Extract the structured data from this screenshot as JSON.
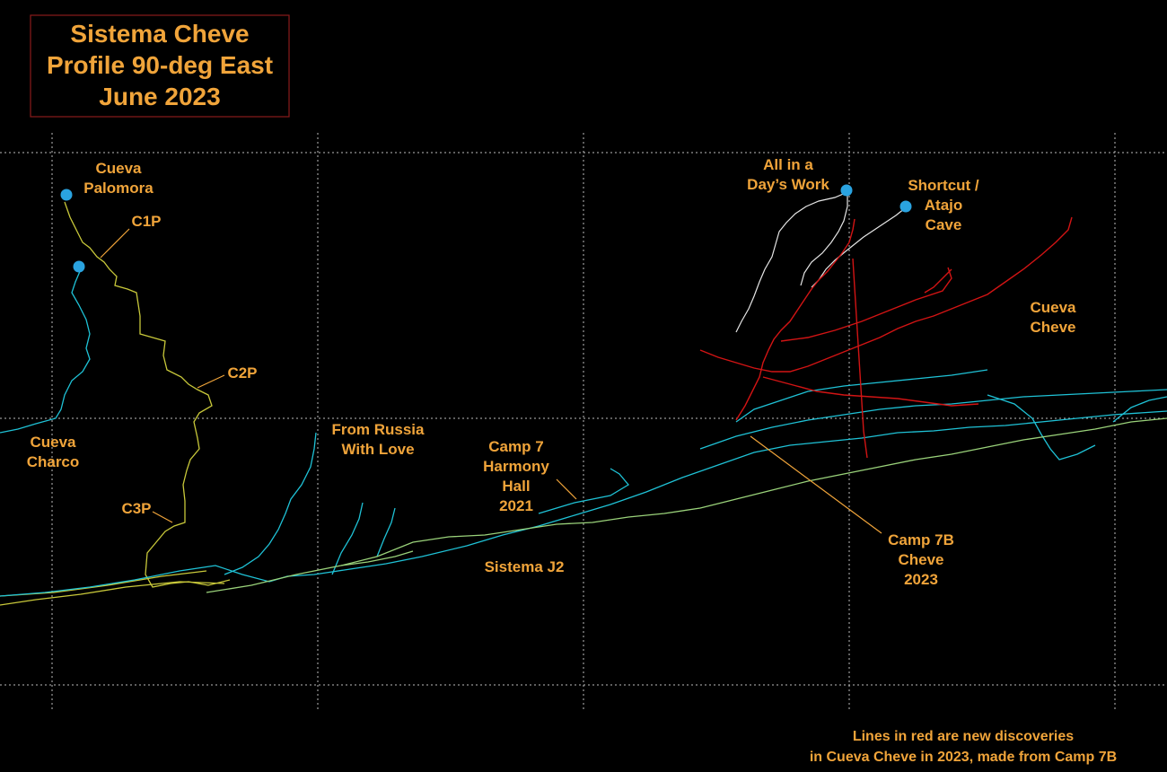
{
  "title": {
    "line1": "Sistema Cheve",
    "line2": "Profile 90-deg East",
    "line3": "June 2023"
  },
  "labels": {
    "palomora_1": "Cueva",
    "palomora_2": "Palomora",
    "c1p": "C1P",
    "c2p": "C2P",
    "c3p": "C3P",
    "charco_1": "Cueva",
    "charco_2": "Charco",
    "russia_1": "From Russia",
    "russia_2": "With Love",
    "camp7_1": "Camp 7",
    "camp7_2": "Harmony",
    "camp7_3": "Hall",
    "camp7_4": "2021",
    "j2": "Sistema J2",
    "days_work_1": "All in a",
    "days_work_2": "Day’s Work",
    "shortcut_1": "Shortcut /",
    "shortcut_2": "Atajo",
    "shortcut_3": "Cave",
    "cheve_1": "Cueva",
    "cheve_2": "Cheve",
    "camp7b_1": "Camp 7B",
    "camp7b_2": "Cheve",
    "camp7b_3": "2023"
  },
  "note": {
    "line1": "Lines in red are new discoveries",
    "line2": "in Cueva Cheve in 2023, made from Camp 7B"
  },
  "colors": {
    "label": "#f0a43a",
    "existing_survey": "#1fc2d6",
    "new_2023": "#d21414",
    "palomora_route": "#c8c83a",
    "j2_route": "#9ad27a",
    "days_work": "#e6e6e6",
    "entrance": "#2aa3e0"
  }
}
